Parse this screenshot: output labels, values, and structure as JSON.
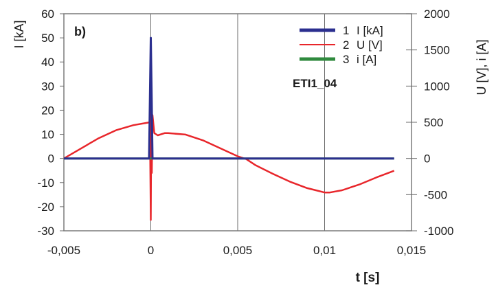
{
  "chart_data": {
    "type": "line",
    "panel_label": "b)",
    "annotation": "ETI1_04",
    "xlabel": "t [s]",
    "ylabel_left": "I [kA]",
    "ylabel_right": "U [V], i [A]",
    "xlim": [
      -0.005,
      0.015
    ],
    "ylim_left": [
      -30,
      60
    ],
    "ylim_right": [
      -1000,
      2000
    ],
    "x_ticks": [
      -0.005,
      0,
      0.005,
      0.01,
      0.015
    ],
    "x_tick_labels": [
      "-0,005",
      "0",
      "0,005",
      "0,01",
      "0,015"
    ],
    "y_left_ticks": [
      -30,
      -20,
      -10,
      0,
      10,
      20,
      30,
      40,
      50,
      60
    ],
    "y_left_tick_labels": [
      "-30",
      "-20",
      "-10",
      "0",
      "10",
      "20",
      "30",
      "40",
      "50",
      "60"
    ],
    "y_right_ticks": [
      -1000,
      -500,
      0,
      500,
      1000,
      1500,
      2000
    ],
    "y_right_tick_labels": [
      "-1000",
      "-500",
      "0",
      "500",
      "1000",
      "1500",
      "2000"
    ],
    "grid": "x-only",
    "legend_position": "top-right",
    "series": [
      {
        "id": 1,
        "name": "I [kA]",
        "legend_number": "1",
        "axis": "left",
        "color": "#2b2f8f",
        "x": [
          -0.005,
          -0.0001,
          0.0,
          5e-05,
          0.0001,
          0.00015,
          0.0003,
          0.014
        ],
        "y": [
          0,
          0,
          50,
          25,
          0,
          0,
          0,
          0
        ]
      },
      {
        "id": 2,
        "name": "U [V]",
        "legend_number": "2",
        "axis": "right",
        "color": "#e8262b",
        "x": [
          -0.005,
          -0.004,
          -0.003,
          -0.002,
          -0.001,
          -0.0003,
          -5e-05,
          0.0,
          3e-05,
          6e-05,
          0.0001,
          0.0002,
          0.0004,
          0.0008,
          0.001,
          0.002,
          0.003,
          0.004,
          0.005,
          0.0055,
          0.006,
          0.007,
          0.008,
          0.009,
          0.0095,
          0.01,
          0.0103,
          0.011,
          0.012,
          0.013,
          0.014
        ],
        "y": [
          0,
          140,
          280,
          390,
          460,
          490,
          500,
          -850,
          800,
          -200,
          600,
          350,
          320,
          350,
          350,
          330,
          250,
          140,
          30,
          -10,
          -90,
          -210,
          -320,
          -410,
          -440,
          -470,
          -470,
          -440,
          -360,
          -260,
          -170
        ]
      },
      {
        "id": 3,
        "name": "i [A]",
        "legend_number": "3",
        "axis": "right",
        "color": "#2f8a3e",
        "x": [
          -0.005,
          0.014
        ],
        "y": [
          0,
          0
        ]
      }
    ]
  }
}
